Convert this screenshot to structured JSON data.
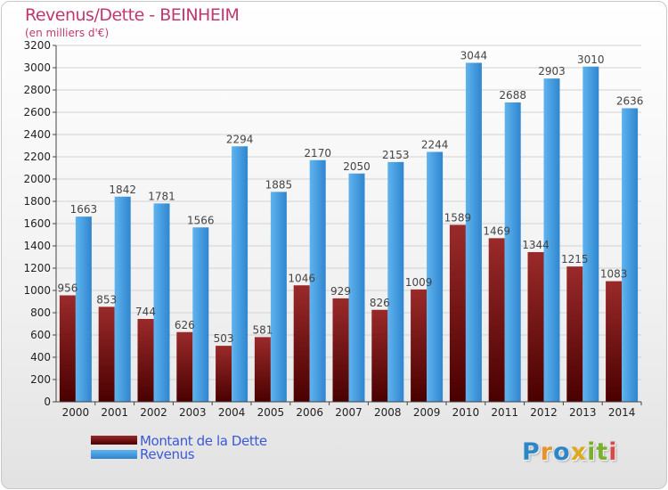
{
  "title": "Revenus/Dette - BEINHEIM",
  "subtitle": "(en milliers d'€)",
  "logo": {
    "letters": [
      "P",
      "r",
      "o",
      "x",
      "i",
      "t",
      "i"
    ],
    "colors": [
      "#2d86c7",
      "#e8922b",
      "#2d86c7",
      "#e0a81e",
      "#7ab02e",
      "#7ab02e",
      "#d84a4a"
    ]
  },
  "chart_data": {
    "type": "bar",
    "categories": [
      "2000",
      "2001",
      "2002",
      "2003",
      "2004",
      "2005",
      "2006",
      "2007",
      "2008",
      "2009",
      "2010",
      "2011",
      "2012",
      "2013",
      "2014"
    ],
    "series": [
      {
        "name": "Montant de la Dette",
        "color": "#7a1a1a",
        "values": [
          956,
          853,
          744,
          626,
          503,
          581,
          1046,
          929,
          826,
          1009,
          1589,
          1469,
          1344,
          1215,
          1083
        ],
        "labels": [
          "956",
          "853",
          "744",
          "626",
          "503",
          "581",
          "1046",
          "929",
          "826",
          "1009",
          "1589",
          "1469",
          "1344",
          "1215",
          "1083"
        ]
      },
      {
        "name": "Revenus",
        "color": "#3d9ae0",
        "values": [
          1663,
          1842,
          1781,
          1566,
          2294,
          1885,
          2170,
          2050,
          2153,
          2244,
          3044,
          2688,
          2903,
          3010,
          2636
        ],
        "labels": [
          "1663",
          "1842",
          "1781",
          "1566",
          "2294",
          "1885",
          "2170",
          "2050",
          "2153",
          "2244",
          "3044",
          "2688",
          "2903",
          "3010",
          "2636"
        ]
      }
    ],
    "ylim": [
      0,
      3200
    ],
    "yticks": [
      0,
      200,
      400,
      600,
      800,
      1000,
      1200,
      1400,
      1600,
      1800,
      2000,
      2200,
      2400,
      2600,
      2800,
      3000,
      3200
    ],
    "grid": true,
    "legend_position": "bottom-left"
  }
}
